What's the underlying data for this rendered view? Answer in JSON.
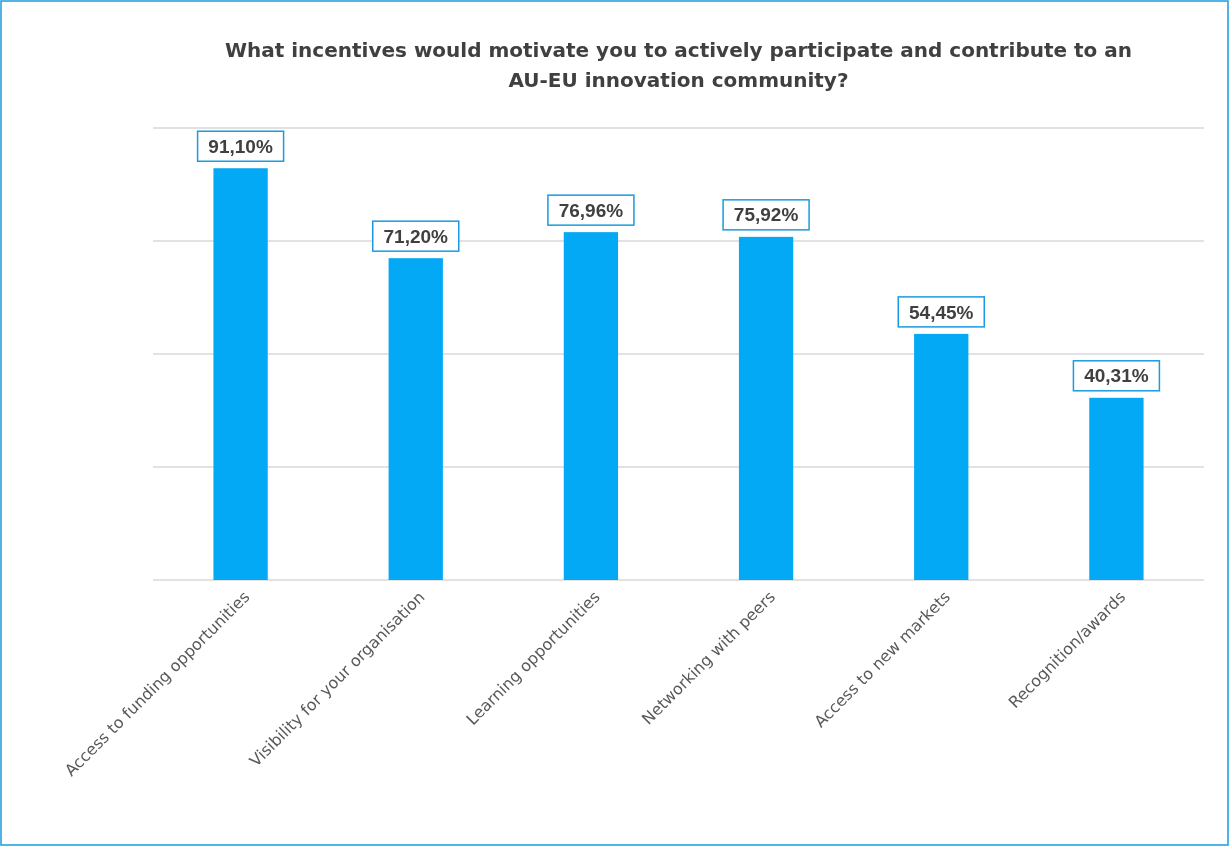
{
  "chart_data": {
    "type": "bar",
    "title": "What incentives would motivate you to actively participate and contribute to an AU-EU innovation community?",
    "categories": [
      "Access to funding opportunities",
      "Visibility for your organisation",
      "Learning opportunities",
      "Networking with peers",
      "Access to new markets",
      "Recognition/awards"
    ],
    "values": [
      91.1,
      71.2,
      76.96,
      75.92,
      54.45,
      40.31
    ],
    "value_labels": [
      "91,10%",
      "71,20%",
      "76,96%",
      "75,92%",
      "54,45%",
      "40,31%"
    ],
    "color": "#03a9f4",
    "ylim": [
      0,
      100
    ],
    "yticks": [
      {
        "value": 0,
        "label": null
      },
      {
        "value": 25,
        "label": null
      },
      {
        "value": 50,
        "label": null
      },
      {
        "value": 75,
        "label": null
      },
      {
        "value": 100,
        "label": null
      }
    ],
    "grid": true,
    "tick_labels": "x"
  }
}
